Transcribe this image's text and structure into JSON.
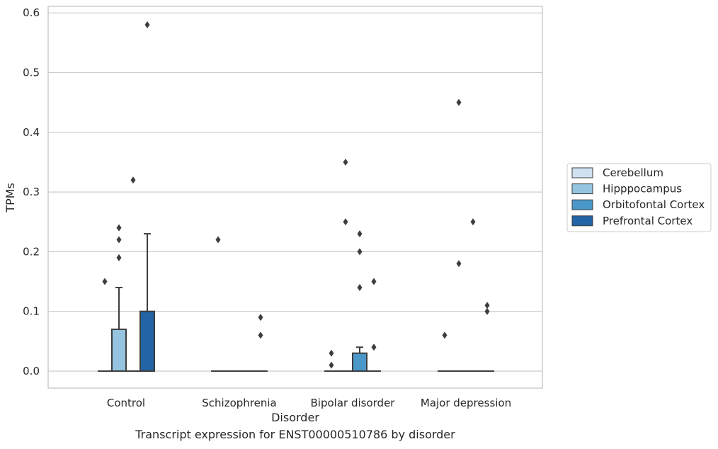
{
  "caption": "Transcript expression for ENST00000510786 by disorder",
  "chart_data": {
    "type": "box",
    "xlabel": "Disorder",
    "ylabel": "TPMs",
    "ylim": [
      -0.03,
      0.61
    ],
    "yticks": [
      0.0,
      0.1,
      0.2,
      0.3,
      0.4,
      0.5,
      0.6
    ],
    "ytick_labels": [
      "0.0",
      "0.1",
      "0.2",
      "0.3",
      "0.4",
      "0.5",
      "0.6"
    ],
    "grid": "horizontal",
    "legend_position": "right",
    "categories": [
      "Control",
      "Schizophrenia",
      "Bipolar disorder",
      "Major depression"
    ],
    "series": [
      {
        "name": "Cerebellum",
        "color": "#d0e1f2",
        "boxes": [
          {
            "q1": 0,
            "median": 0,
            "q3": 0,
            "whisker_low": 0,
            "whisker_high": 0,
            "outliers": [
              0.15
            ]
          },
          {
            "q1": 0,
            "median": 0,
            "q3": 0,
            "whisker_low": 0,
            "whisker_high": 0,
            "outliers": [
              0.22
            ]
          },
          {
            "q1": 0,
            "median": 0,
            "q3": 0,
            "whisker_low": 0,
            "whisker_high": 0,
            "outliers": [
              0.03,
              0.01
            ]
          },
          {
            "q1": 0,
            "median": 0,
            "q3": 0,
            "whisker_low": 0,
            "whisker_high": 0,
            "outliers": [
              0.06
            ]
          }
        ]
      },
      {
        "name": "Hipppocampus",
        "color": "#94c4df",
        "boxes": [
          {
            "q1": 0,
            "median": 0,
            "q3": 0.07,
            "whisker_low": 0,
            "whisker_high": 0.14,
            "outliers": [
              0.24,
              0.22,
              0.19
            ]
          },
          {
            "q1": 0,
            "median": 0,
            "q3": 0,
            "whisker_low": 0,
            "whisker_high": 0,
            "outliers": []
          },
          {
            "q1": 0,
            "median": 0,
            "q3": 0,
            "whisker_low": 0,
            "whisker_high": 0,
            "outliers": [
              0.35,
              0.25
            ]
          },
          {
            "q1": 0,
            "median": 0,
            "q3": 0,
            "whisker_low": 0,
            "whisker_high": 0,
            "outliers": [
              0.45,
              0.18
            ]
          }
        ]
      },
      {
        "name": "Orbitofontal Cortex",
        "color": "#4a98c9",
        "boxes": [
          {
            "q1": 0,
            "median": 0,
            "q3": 0,
            "whisker_low": 0,
            "whisker_high": 0,
            "outliers": [
              0.32
            ]
          },
          {
            "q1": 0,
            "median": 0,
            "q3": 0,
            "whisker_low": 0,
            "whisker_high": 0,
            "outliers": []
          },
          {
            "q1": 0,
            "median": 0,
            "q3": 0.03,
            "whisker_low": 0,
            "whisker_high": 0.04,
            "outliers": [
              0.23,
              0.2,
              0.14
            ]
          },
          {
            "q1": 0,
            "median": 0,
            "q3": 0,
            "whisker_low": 0,
            "whisker_high": 0,
            "outliers": [
              0.25
            ]
          }
        ]
      },
      {
        "name": "Prefrontal Cortex",
        "color": "#2264a5",
        "boxes": [
          {
            "q1": 0,
            "median": 0,
            "q3": 0.1,
            "whisker_low": 0,
            "whisker_high": 0.23,
            "outliers": [
              0.58
            ]
          },
          {
            "q1": 0,
            "median": 0,
            "q3": 0,
            "whisker_low": 0,
            "whisker_high": 0,
            "outliers": [
              0.09,
              0.06
            ]
          },
          {
            "q1": 0,
            "median": 0,
            "q3": 0,
            "whisker_low": 0,
            "whisker_high": 0,
            "outliers": [
              0.15,
              0.04
            ]
          },
          {
            "q1": 0,
            "median": 0,
            "q3": 0,
            "whisker_low": 0,
            "whisker_high": 0,
            "outliers": [
              0.11,
              0.1
            ]
          }
        ]
      }
    ]
  }
}
